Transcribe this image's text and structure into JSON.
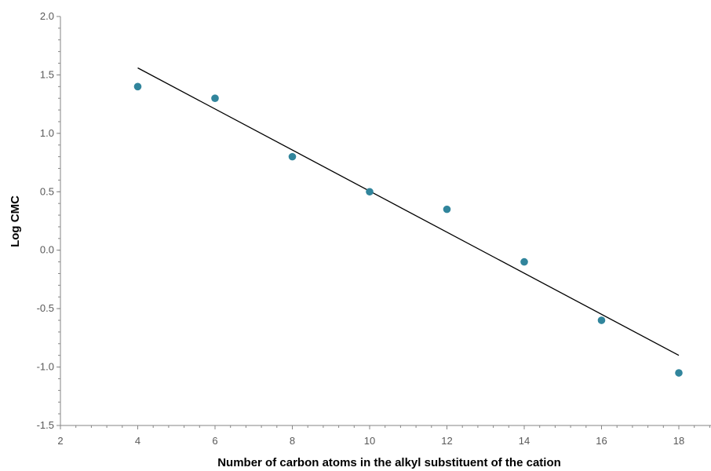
{
  "chart_data": {
    "type": "scatter",
    "title": "",
    "xlabel": "Number of carbon atoms in the alkyl substituent of the cation",
    "ylabel": "Log CMC",
    "xlim": [
      2,
      19
    ],
    "ylim": [
      -1.5,
      2.0
    ],
    "x_ticks": [
      2,
      4,
      6,
      8,
      10,
      12,
      14,
      16,
      18
    ],
    "y_ticks": [
      -1.5,
      -1.0,
      -0.5,
      0.0,
      0.5,
      1.0,
      1.5,
      2.0
    ],
    "x_tick_labels": [
      "2",
      "4",
      "6",
      "8",
      "10",
      "12",
      "14",
      "16",
      "18"
    ],
    "y_tick_labels": [
      "-1.5",
      "-1.0",
      "-0.5",
      "0.0",
      "0.5",
      "1.0",
      "1.5",
      "2.0"
    ],
    "grid": false,
    "legend": "none",
    "series": [
      {
        "x": [
          4,
          6,
          8,
          10,
          12,
          14,
          16,
          18
        ],
        "y": [
          1.4,
          1.3,
          0.8,
          0.5,
          0.35,
          -0.1,
          -0.6,
          -1.05
        ],
        "color": "#31859C"
      }
    ],
    "trendline": {
      "type": "linear",
      "x": [
        4,
        18
      ],
      "y": [
        1.56,
        -0.9
      ],
      "color": "#000000"
    }
  }
}
